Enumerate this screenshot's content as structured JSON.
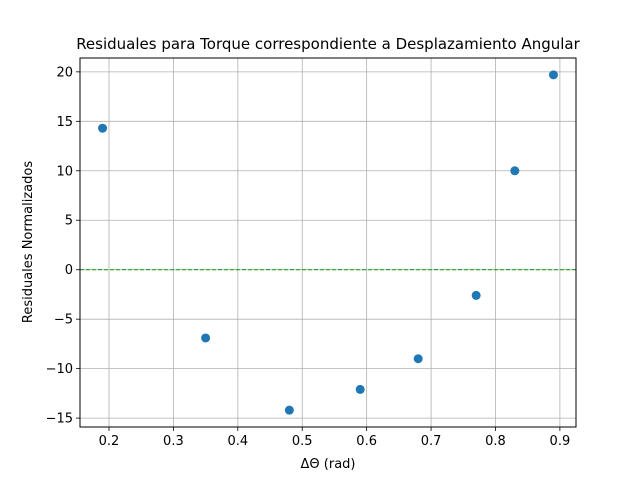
{
  "chart_data": {
    "type": "scatter",
    "title": "Residuales para Torque correspondiente a Desplazamiento Angular",
    "xlabel": "ΔΘ (rad)",
    "ylabel": "Residuales Normalizados",
    "xlim": [
      0.155,
      0.925
    ],
    "ylim": [
      -15.9,
      21.4
    ],
    "xticks": [
      0.2,
      0.3,
      0.4,
      0.5,
      0.6,
      0.7,
      0.8,
      0.9
    ],
    "xtick_labels": [
      "0.2",
      "0.3",
      "0.4",
      "0.5",
      "0.6",
      "0.7",
      "0.8",
      "0.9"
    ],
    "yticks": [
      -15,
      -10,
      -5,
      0,
      5,
      10,
      15,
      20
    ],
    "ytick_labels": [
      "−15",
      "−10",
      "−5",
      "0",
      "5",
      "10",
      "15",
      "20"
    ],
    "grid": true,
    "reference_line": {
      "y": 0,
      "style": "dashed",
      "color": "#2ca02c"
    },
    "series": [
      {
        "color": "#1f77b4",
        "x": [
          0.19,
          0.35,
          0.48,
          0.59,
          0.68,
          0.77,
          0.83,
          0.89
        ],
        "y": [
          14.3,
          -6.9,
          -14.2,
          -12.1,
          -9.0,
          -2.6,
          10.0,
          19.7
        ]
      }
    ]
  }
}
